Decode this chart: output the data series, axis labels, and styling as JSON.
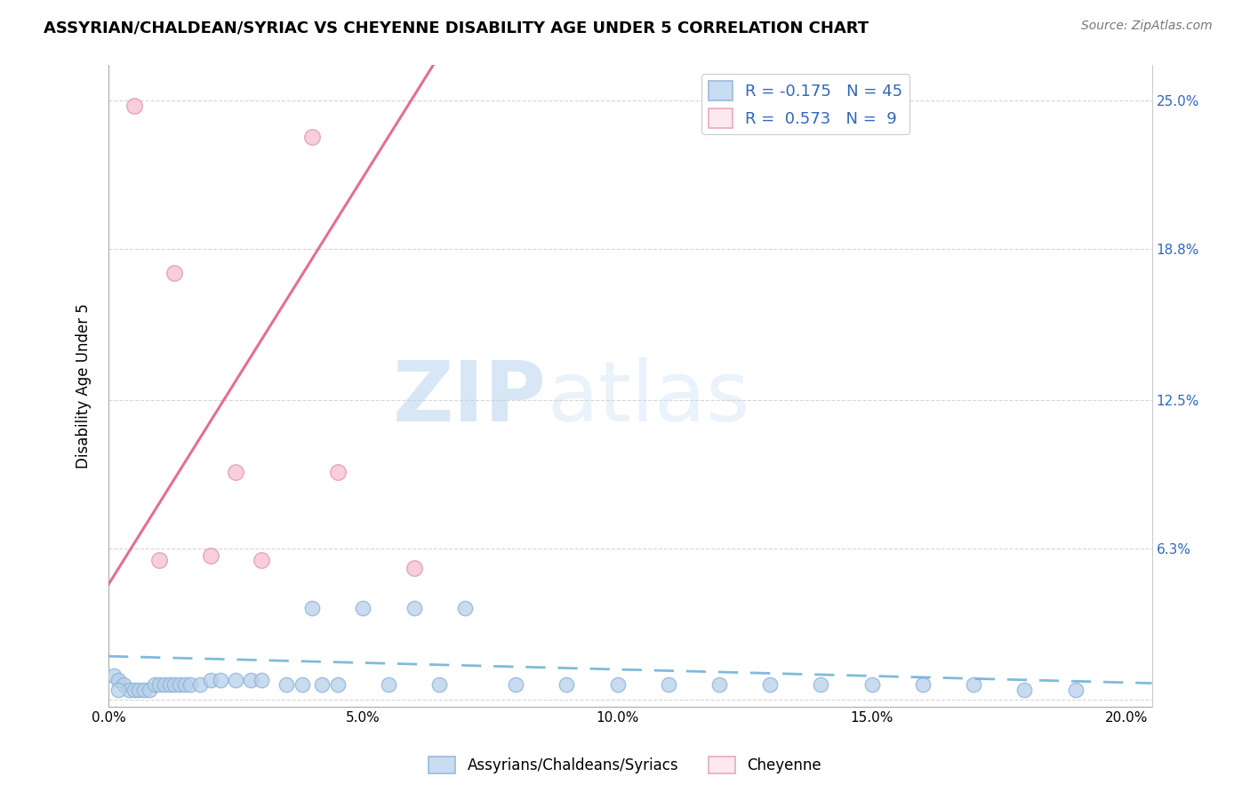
{
  "title": "ASSYRIAN/CHALDEAN/SYRIAC VS CHEYENNE DISABILITY AGE UNDER 5 CORRELATION CHART",
  "source": "Source: ZipAtlas.com",
  "ylabel": "Disability Age Under 5",
  "xlim": [
    0.0,
    0.205
  ],
  "ylim": [
    -0.003,
    0.265
  ],
  "xtick_labels": [
    "0.0%",
    "5.0%",
    "10.0%",
    "15.0%",
    "20.0%"
  ],
  "xtick_vals": [
    0.0,
    0.05,
    0.1,
    0.15,
    0.2
  ],
  "ytick_labels": [
    "",
    "6.3%",
    "12.5%",
    "18.8%",
    "25.0%"
  ],
  "ytick_vals": [
    0.0,
    0.063,
    0.125,
    0.188,
    0.25
  ],
  "blue_color": "#b8d0ea",
  "blue_edge": "#8ab0d5",
  "pink_color": "#f5bfce",
  "pink_edge": "#e090a8",
  "blue_R": -0.175,
  "blue_N": 45,
  "pink_R": 0.573,
  "pink_N": 9,
  "legend_label_blue": "Assyrians/Chaldeans/Syriacs",
  "legend_label_pink": "Cheyenne",
  "blue_line_color": "#6aaed6",
  "pink_line_color": "#e06080",
  "right_tick_color": "#3366bb",
  "blue_points_x": [
    0.001,
    0.002,
    0.003,
    0.004,
    0.005,
    0.006,
    0.007,
    0.008,
    0.009,
    0.01,
    0.011,
    0.012,
    0.013,
    0.014,
    0.015,
    0.016,
    0.018,
    0.02,
    0.022,
    0.025,
    0.028,
    0.03,
    0.035,
    0.038,
    0.04,
    0.042,
    0.045,
    0.05,
    0.055,
    0.06,
    0.065,
    0.07,
    0.08,
    0.09,
    0.1,
    0.11,
    0.12,
    0.13,
    0.14,
    0.15,
    0.16,
    0.17,
    0.18,
    0.19,
    0.002
  ],
  "blue_points_y": [
    0.01,
    0.008,
    0.006,
    0.004,
    0.004,
    0.004,
    0.004,
    0.004,
    0.006,
    0.006,
    0.006,
    0.006,
    0.006,
    0.006,
    0.006,
    0.006,
    0.006,
    0.008,
    0.008,
    0.008,
    0.008,
    0.008,
    0.006,
    0.006,
    0.038,
    0.006,
    0.006,
    0.038,
    0.006,
    0.038,
    0.006,
    0.038,
    0.006,
    0.006,
    0.006,
    0.006,
    0.006,
    0.006,
    0.006,
    0.006,
    0.006,
    0.006,
    0.004,
    0.004,
    0.004
  ],
  "pink_points_x": [
    0.005,
    0.013,
    0.02,
    0.025,
    0.03,
    0.045,
    0.06,
    0.04,
    0.01
  ],
  "pink_points_y": [
    0.248,
    0.178,
    0.06,
    0.095,
    0.058,
    0.095,
    0.055,
    0.235,
    0.058
  ]
}
